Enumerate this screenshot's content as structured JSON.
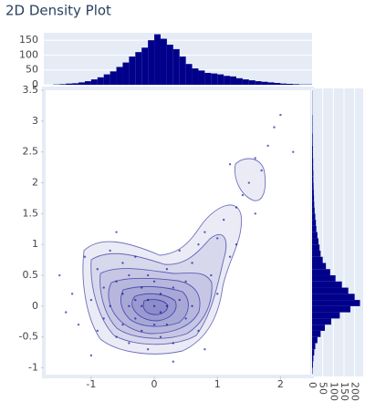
{
  "chart_data": [
    {
      "type": "scatter",
      "title": "2D Density Plot",
      "color": "#00008b",
      "x": [
        -1.5,
        -1.3,
        -1.2,
        -1.1,
        -1.0,
        -0.9,
        -0.9,
        -0.8,
        -0.8,
        -0.7,
        -0.7,
        -0.6,
        -0.6,
        -0.5,
        -0.5,
        -0.5,
        -0.4,
        -0.4,
        -0.4,
        -0.3,
        -0.3,
        -0.3,
        -0.2,
        -0.2,
        -0.2,
        -0.1,
        -0.1,
        -0.1,
        0,
        0,
        0,
        0.1,
        0.1,
        0.1,
        0.2,
        0.2,
        0.2,
        0.3,
        0.3,
        0.4,
        0.4,
        0.5,
        0.5,
        0.6,
        0.6,
        0.7,
        0.7,
        0.8,
        0.9,
        1.0,
        1.0,
        1.1,
        1.2,
        1.3,
        1.3,
        1.4,
        1.5,
        1.6,
        1.6,
        1.7,
        1.8,
        1.9,
        2.0,
        2.2,
        -1.4,
        -1.0,
        0.3,
        0.8,
        1.2,
        -0.6
      ],
      "values": [
        0.5,
        0.2,
        -0.3,
        0.8,
        0.1,
        -0.4,
        0.6,
        0.3,
        -0.2,
        0.9,
        0.0,
        -0.5,
        0.4,
        0.2,
        -0.3,
        0.7,
        0.0,
        -0.6,
        0.5,
        0.1,
        -0.2,
        0.8,
        0.0,
        -0.4,
        0.3,
        0.1,
        -0.7,
        0.5,
        0.0,
        -0.3,
        0.4,
        0.2,
        -0.5,
        -0.1,
        0.0,
        0.6,
        -0.3,
        0.3,
        -0.6,
        0.1,
        0.9,
        0.4,
        -0.2,
        0.7,
        0.0,
        1.0,
        -0.4,
        1.2,
        0.5,
        1.1,
        0.2,
        1.4,
        0.8,
        1.6,
        1.0,
        1.8,
        2.0,
        1.5,
        2.4,
        2.2,
        2.6,
        2.9,
        3.1,
        2.5,
        -0.1,
        -0.8,
        -0.9,
        -0.7,
        2.3,
        1.2
      ],
      "xlim": [
        -1.75,
        2.5
      ],
      "xticks": [
        -1,
        0,
        1,
        2
      ],
      "ylim": [
        -1.14,
        3.53
      ],
      "yticks": [
        -1,
        -0.5,
        0,
        0.5,
        1,
        1.5,
        2,
        2.5,
        3,
        3.5
      ]
    },
    {
      "type": "histogram",
      "orientation": "v",
      "color": "#00008b",
      "bins": [
        -1.6,
        -1.5,
        -1.4,
        -1.3,
        -1.2,
        -1.1,
        -1.0,
        -0.9,
        -0.8,
        -0.7,
        -0.6,
        -0.5,
        -0.4,
        -0.3,
        -0.2,
        -0.1,
        0.0,
        0.1,
        0.2,
        0.3,
        0.4,
        0.5,
        0.6,
        0.7,
        0.8,
        0.9,
        1.0,
        1.1,
        1.2,
        1.3,
        1.4,
        1.5,
        1.6,
        1.7,
        1.8,
        1.9,
        2.0,
        2.1,
        2.2,
        2.3,
        2.4,
        2.5
      ],
      "values": [
        1,
        2,
        4,
        5,
        8,
        12,
        18,
        25,
        35,
        45,
        60,
        75,
        95,
        110,
        125,
        150,
        170,
        155,
        135,
        120,
        95,
        70,
        55,
        48,
        40,
        38,
        35,
        30,
        28,
        22,
        18,
        15,
        12,
        10,
        8,
        6,
        4,
        3,
        2,
        1,
        1
      ],
      "ylim": [
        0,
        175
      ],
      "yticks": [
        0,
        50,
        100,
        150
      ]
    },
    {
      "type": "histogram",
      "orientation": "h",
      "color": "#00008b",
      "bins": [
        -1.1,
        -1.0,
        -0.9,
        -0.8,
        -0.7,
        -0.6,
        -0.5,
        -0.4,
        -0.3,
        -0.2,
        -0.1,
        0.0,
        0.1,
        0.2,
        0.3,
        0.4,
        0.5,
        0.6,
        0.7,
        0.8,
        0.9,
        1.0,
        1.1,
        1.2,
        1.3,
        1.4,
        1.5,
        1.6,
        1.7,
        1.8,
        1.9,
        2.0,
        2.1,
        2.2,
        2.3,
        2.4,
        2.5,
        2.6,
        2.7,
        2.8,
        2.9,
        3.0,
        3.1,
        3.2,
        3.3,
        3.4,
        3.5
      ],
      "values": [
        2,
        4,
        6,
        10,
        15,
        25,
        40,
        60,
        90,
        130,
        180,
        225,
        200,
        170,
        140,
        110,
        85,
        65,
        50,
        40,
        35,
        30,
        25,
        20,
        18,
        15,
        12,
        10,
        9,
        8,
        7,
        6,
        6,
        5,
        5,
        4,
        4,
        3,
        3,
        2,
        2,
        2,
        1,
        1,
        1,
        1
      ],
      "xlim": [
        0,
        240
      ],
      "xticks": [
        0,
        50,
        100,
        150,
        200
      ]
    }
  ]
}
